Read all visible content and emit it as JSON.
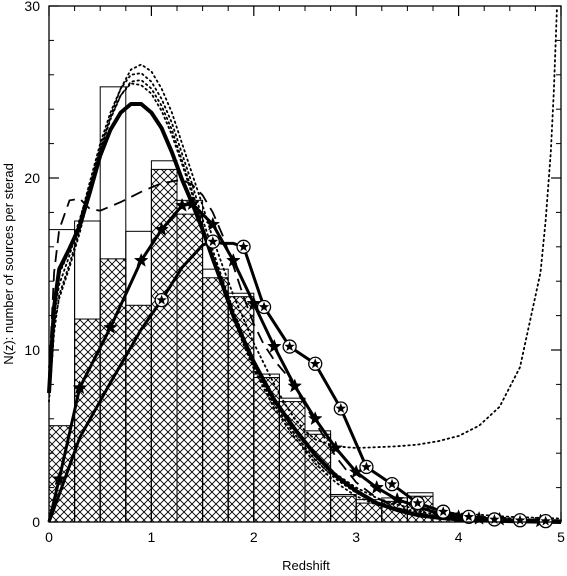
{
  "chart_data": {
    "type": "line",
    "title": "",
    "xlabel": "Redshift",
    "ylabel": "N(z): number of sources per sterad",
    "xlim": [
      0,
      5
    ],
    "ylim": [
      0,
      30
    ],
    "xticks": [
      0,
      1,
      2,
      3,
      4,
      5
    ],
    "yticks": [
      0,
      10,
      20,
      30
    ],
    "grid": false,
    "legend": "none",
    "histograms": [
      {
        "style": "open",
        "bins": [
          [
            0.0,
            0.25,
            17.0
          ],
          [
            0.25,
            0.5,
            17.5
          ],
          [
            0.5,
            0.75,
            25.3
          ],
          [
            0.75,
            1.0,
            16.9
          ],
          [
            1.0,
            1.25,
            21.0
          ],
          [
            1.25,
            1.5,
            18.7
          ],
          [
            1.5,
            1.75,
            14.7
          ],
          [
            1.75,
            2.0,
            13.3
          ],
          [
            2.0,
            2.25,
            8.6
          ],
          [
            2.25,
            2.5,
            7.2
          ],
          [
            2.5,
            2.75,
            5.3
          ],
          [
            2.75,
            3.0,
            1.6
          ],
          [
            3.0,
            3.25,
            1.3
          ],
          [
            3.25,
            3.5,
            1.4
          ],
          [
            3.5,
            3.75,
            1.7
          ],
          [
            3.75,
            4.0,
            0.5
          ],
          [
            4.0,
            4.25,
            0.2
          ],
          [
            4.25,
            4.5,
            0.15
          ]
        ]
      },
      {
        "style": "hatched",
        "bins": [
          [
            0.0,
            0.25,
            5.6
          ],
          [
            0.25,
            0.5,
            11.8
          ],
          [
            0.5,
            0.75,
            15.3
          ],
          [
            0.75,
            1.0,
            12.6
          ],
          [
            1.0,
            1.25,
            20.5
          ],
          [
            1.25,
            1.5,
            17.9
          ],
          [
            1.5,
            1.75,
            14.2
          ],
          [
            1.75,
            2.0,
            13.1
          ],
          [
            2.0,
            2.25,
            8.4
          ],
          [
            2.25,
            2.5,
            7.0
          ],
          [
            2.5,
            2.75,
            5.1
          ],
          [
            2.75,
            3.0,
            1.5
          ],
          [
            3.0,
            3.25,
            1.1
          ],
          [
            3.25,
            3.5,
            1.2
          ],
          [
            3.5,
            3.75,
            1.5
          ],
          [
            3.75,
            4.0,
            0.5
          ],
          [
            4.0,
            4.25,
            0.2
          ]
        ]
      }
    ],
    "series": [
      {
        "style": "thick-solid",
        "x": [
          0.0,
          0.05,
          0.1,
          0.2,
          0.3,
          0.4,
          0.5,
          0.6,
          0.7,
          0.8,
          0.9,
          1.0,
          1.1,
          1.2,
          1.3,
          1.4,
          1.5,
          1.6,
          1.7,
          1.8,
          1.9,
          2.0,
          2.2,
          2.4,
          2.6,
          2.8,
          3.0,
          3.2,
          3.4,
          3.6,
          3.8,
          4.0,
          4.5,
          5.0
        ],
        "y": [
          7.5,
          12.5,
          14.7,
          15.9,
          17.2,
          19.2,
          21.3,
          22.8,
          23.8,
          24.3,
          24.3,
          23.8,
          22.9,
          21.5,
          19.9,
          18.5,
          17.0,
          15.3,
          13.7,
          12.0,
          10.6,
          9.3,
          7.1,
          5.4,
          3.9,
          2.7,
          1.8,
          1.1,
          0.7,
          0.4,
          0.25,
          0.15,
          0.05,
          0.0
        ]
      },
      {
        "style": "star-markers",
        "x": [
          0.0,
          0.1,
          0.3,
          0.6,
          0.9,
          1.1,
          1.3,
          1.4,
          1.6,
          1.8,
          2.0,
          2.2,
          2.4,
          2.6,
          2.8,
          3.0,
          3.2,
          3.4,
          3.6,
          3.8,
          4.0,
          4.2,
          4.4,
          4.6,
          4.8,
          5.0
        ],
        "y": [
          0.0,
          2.5,
          7.8,
          11.3,
          15.2,
          17.0,
          18.4,
          18.5,
          17.3,
          15.2,
          12.7,
          10.2,
          7.9,
          6.0,
          4.3,
          2.9,
          2.0,
          1.3,
          0.9,
          0.5,
          0.3,
          0.2,
          0.15,
          0.1,
          0.05,
          0.0
        ]
      },
      {
        "style": "circled-star-markers",
        "x": [
          0.0,
          0.1,
          0.3,
          0.6,
          0.9,
          1.1,
          1.3,
          1.5,
          1.6,
          1.7,
          1.8,
          1.9,
          2.1,
          2.35,
          2.6,
          2.85,
          3.1,
          3.35,
          3.6,
          3.85,
          4.1,
          4.35,
          4.6,
          4.85
        ],
        "y": [
          0.0,
          1.6,
          4.9,
          8.1,
          11.2,
          12.9,
          14.8,
          16.1,
          16.3,
          16.2,
          16.2,
          16.0,
          12.5,
          10.2,
          9.2,
          6.6,
          3.2,
          2.2,
          1.1,
          0.6,
          0.3,
          0.15,
          0.1,
          0.05
        ]
      },
      {
        "style": "dashed",
        "x": [
          0.0,
          0.05,
          0.1,
          0.2,
          0.3,
          0.4,
          0.5,
          0.7,
          0.9,
          1.1,
          1.3,
          1.4,
          1.5,
          1.6,
          1.7,
          1.8,
          1.9,
          2.0,
          2.1,
          2.2,
          2.3,
          2.4,
          2.5,
          2.6,
          2.8,
          3.0,
          3.2,
          3.4,
          3.6,
          3.8,
          4.0
        ],
        "y": [
          8.5,
          14.5,
          17.0,
          18.7,
          18.8,
          18.2,
          18.1,
          18.6,
          19.2,
          19.7,
          19.9,
          19.6,
          19.0,
          18.0,
          16.6,
          14.9,
          13.1,
          11.5,
          10.3,
          9.4,
          8.7,
          7.8,
          6.8,
          5.8,
          3.8,
          2.3,
          1.4,
          0.8,
          0.5,
          0.3,
          0.15
        ]
      },
      {
        "style": "dotted",
        "x": [
          0.0,
          0.05,
          0.1,
          0.2,
          0.3,
          0.4,
          0.5,
          0.6,
          0.7,
          0.8,
          0.9,
          1.0,
          1.1,
          1.2,
          1.3,
          1.4,
          1.5,
          1.6,
          1.7,
          1.8,
          1.9,
          2.0,
          2.2,
          2.4,
          2.6,
          2.8,
          3.0,
          3.2,
          3.4,
          3.6,
          3.8,
          4.0,
          4.5,
          5.0
        ],
        "y": [
          8.0,
          12.0,
          13.8,
          15.5,
          17.5,
          19.8,
          22.0,
          23.8,
          25.2,
          26.0,
          26.1,
          25.6,
          24.6,
          23.2,
          21.4,
          19.6,
          17.6,
          15.8,
          14.0,
          12.3,
          10.8,
          9.4,
          7.1,
          5.4,
          3.9,
          2.8,
          2.0,
          1.4,
          1.0,
          0.75,
          0.6,
          0.5,
          0.3,
          0.2
        ]
      },
      {
        "style": "dotted",
        "x": [
          0.0,
          0.05,
          0.1,
          0.2,
          0.3,
          0.4,
          0.5,
          0.6,
          0.7,
          0.8,
          0.9,
          1.0,
          1.1,
          1.2,
          1.3,
          1.4,
          1.5,
          1.6,
          1.7,
          1.8,
          1.9,
          2.0,
          2.2,
          2.4,
          2.6,
          2.8,
          3.0,
          3.2,
          3.4,
          3.6,
          3.8,
          4.0,
          4.5,
          5.0
        ],
        "y": [
          7.0,
          11.0,
          13.2,
          15.0,
          17.0,
          19.4,
          21.6,
          23.4,
          24.8,
          25.6,
          25.7,
          25.2,
          24.2,
          22.8,
          21.0,
          19.2,
          17.2,
          15.4,
          13.6,
          11.9,
          10.4,
          9.0,
          6.8,
          5.1,
          3.6,
          2.5,
          1.7,
          1.1,
          0.8,
          0.6,
          0.45,
          0.35,
          0.2,
          0.1
        ]
      },
      {
        "style": "dotted",
        "x": [
          0.0,
          0.05,
          0.1,
          0.2,
          0.3,
          0.4,
          0.5,
          0.6,
          0.7,
          0.8,
          0.9,
          1.0,
          1.1,
          1.2,
          1.3,
          1.4,
          1.5,
          1.6,
          1.7,
          1.8,
          1.9,
          2.0,
          2.2,
          2.4,
          2.6,
          2.8,
          3.0,
          3.2,
          3.4,
          3.6,
          3.8,
          4.0,
          4.5,
          5.0
        ],
        "y": [
          9.0,
          13.0,
          14.4,
          15.8,
          17.6,
          19.6,
          21.8,
          23.5,
          24.8,
          25.5,
          25.4,
          24.9,
          23.9,
          22.5,
          20.8,
          19.0,
          17.1,
          15.3,
          13.5,
          11.8,
          10.3,
          8.9,
          6.6,
          4.9,
          3.4,
          2.3,
          1.5,
          1.0,
          0.7,
          0.5,
          0.35,
          0.25,
          0.15,
          0.1
        ]
      },
      {
        "style": "dotted",
        "x": [
          0.0,
          0.05,
          0.1,
          0.2,
          0.3,
          0.4,
          0.5,
          0.6,
          0.7,
          0.8,
          0.9,
          1.0,
          1.1,
          1.2,
          1.3,
          1.4,
          1.5,
          1.6,
          1.7,
          1.8,
          1.9,
          2.0,
          2.1,
          2.2,
          2.3,
          2.4,
          2.5,
          2.6,
          2.8,
          3.0,
          3.2,
          3.4,
          3.6,
          3.8,
          4.0,
          4.2,
          4.4,
          4.6,
          4.8,
          4.85,
          4.9,
          4.93,
          4.96
        ],
        "y": [
          7.5,
          11.5,
          13.0,
          14.8,
          16.8,
          19.2,
          21.6,
          23.6,
          25.2,
          26.3,
          26.6,
          26.2,
          25.2,
          23.8,
          22.0,
          20.2,
          18.4,
          16.5,
          14.8,
          13.2,
          11.8,
          10.4,
          9.2,
          8.0,
          6.9,
          6.0,
          5.3,
          4.8,
          4.4,
          4.3,
          4.35,
          4.4,
          4.5,
          4.7,
          5.0,
          5.6,
          6.7,
          9.0,
          14.5,
          17.5,
          21.5,
          25.0,
          29.8
        ]
      }
    ]
  }
}
